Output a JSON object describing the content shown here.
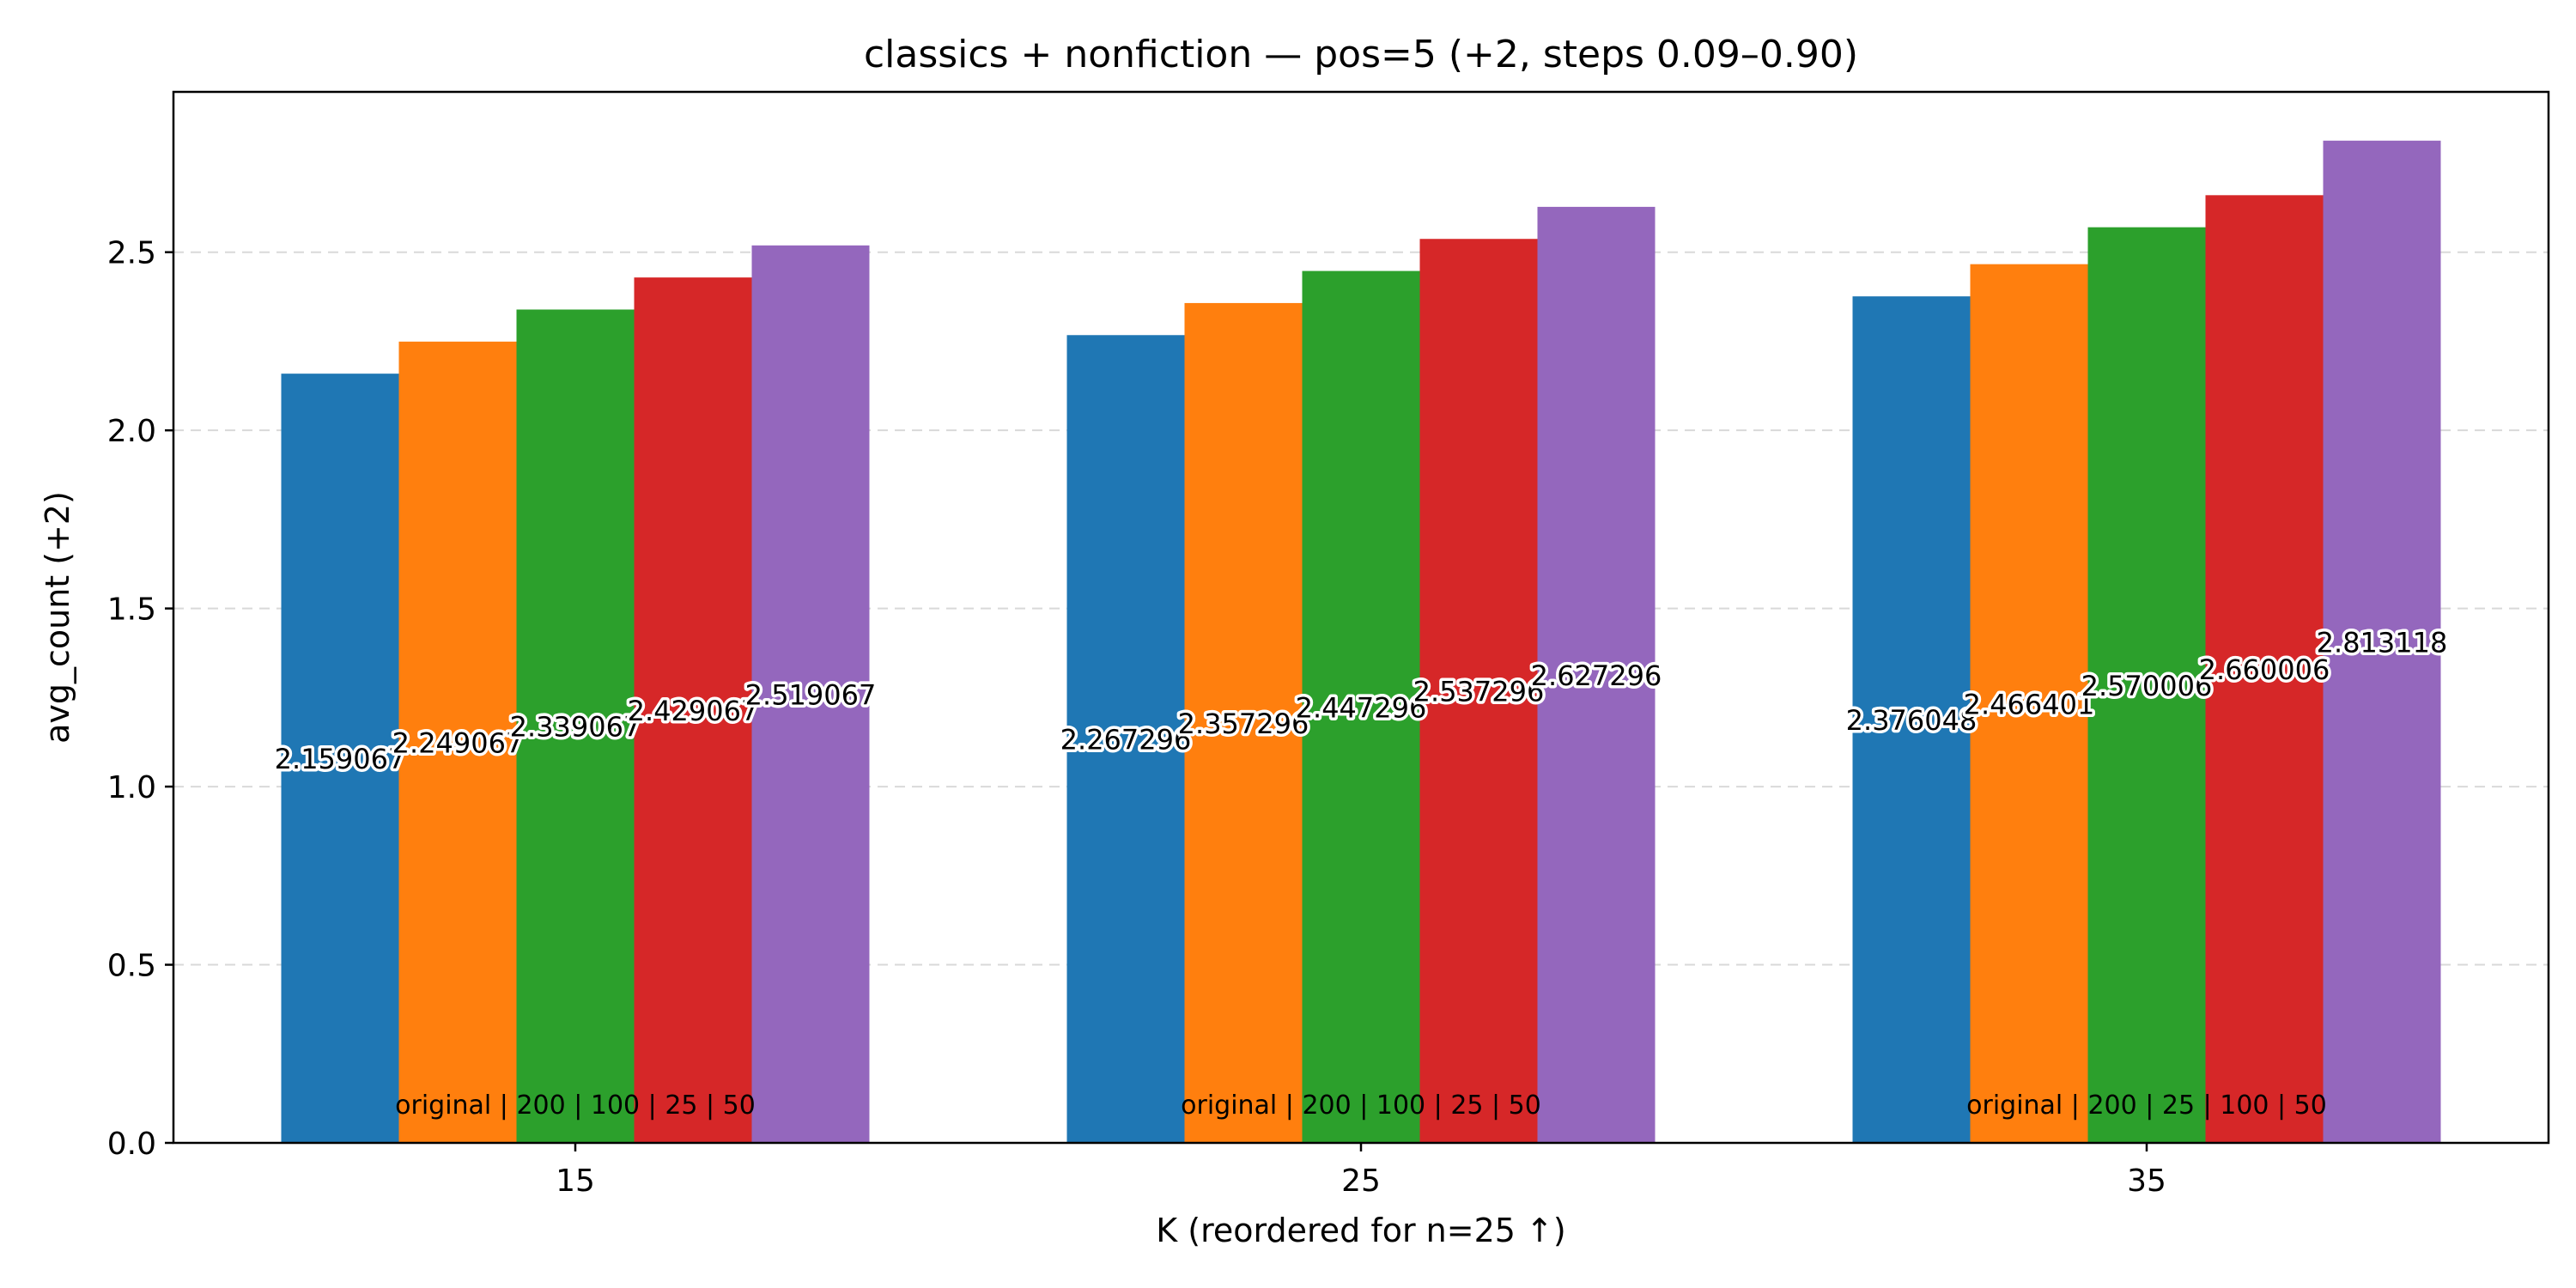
{
  "chart_data": {
    "type": "bar",
    "title": "classics + nonfiction — pos=5 (+2, steps 0.09–0.90)",
    "xlabel": "K (reordered for n=25 ↑)",
    "ylabel": "avg_count (+2)",
    "categories": [
      "15",
      "25",
      "35"
    ],
    "ylim": [
      0,
      2.95
    ],
    "yticks": [
      "0.0",
      "0.5",
      "1.0",
      "1.5",
      "2.0",
      "2.5"
    ],
    "grid": "horizontal dashed",
    "legend": "none",
    "bar_colors": [
      "#1f77b4",
      "#ff7f0e",
      "#2ca02c",
      "#d62728",
      "#9467bd"
    ],
    "groups": [
      {
        "category": "15",
        "order_label": "original | 200 | 100 | 25 | 50",
        "values": [
          2.159067,
          2.249067,
          2.339067,
          2.429067,
          2.519067
        ],
        "labels": [
          "2.159067",
          "2.249067",
          "2.339067",
          "2.429067",
          "2.519067"
        ]
      },
      {
        "category": "25",
        "order_label": "original | 200 | 100 | 25 | 50",
        "values": [
          2.267296,
          2.357296,
          2.447296,
          2.537296,
          2.627296
        ],
        "labels": [
          "2.267296",
          "2.357296",
          "2.447296",
          "2.537296",
          "2.627296"
        ]
      },
      {
        "category": "35",
        "order_label": "original | 200 | 25 | 100 | 50",
        "values": [
          2.376048,
          2.466401,
          2.570006,
          2.660006,
          2.813118
        ],
        "labels": [
          "2.376048",
          "2.466401",
          "2.570006",
          "2.660006",
          "2.813118"
        ]
      }
    ]
  }
}
